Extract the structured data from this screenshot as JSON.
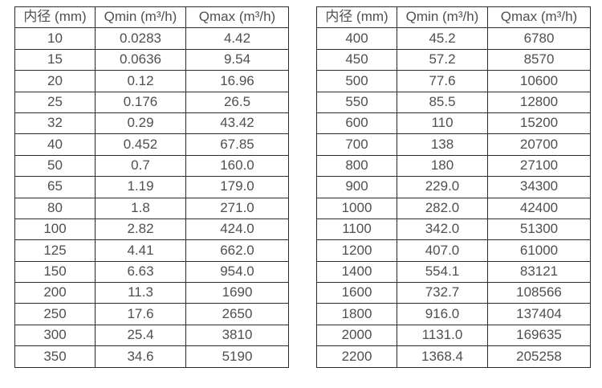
{
  "style": {
    "border_color": "#2b2b2b",
    "text_color": "#4f4f4f",
    "background": "#ffffff"
  },
  "tables": [
    {
      "headers": [
        "内径 (mm)",
        "Qmin (m³/h)",
        "Qmax (m³/h)"
      ],
      "rows": [
        [
          "10",
          "0.0283",
          "4.42"
        ],
        [
          "15",
          "0.0636",
          "9.54"
        ],
        [
          "20",
          "0.12",
          "16.96"
        ],
        [
          "25",
          "0.176",
          "26.5"
        ],
        [
          "32",
          "0.29",
          "43.42"
        ],
        [
          "40",
          "0.452",
          "67.85"
        ],
        [
          "50",
          "0.7",
          "160.0"
        ],
        [
          "65",
          "1.19",
          "179.0"
        ],
        [
          "80",
          "1.8",
          "271.0"
        ],
        [
          "100",
          "2.82",
          "424.0"
        ],
        [
          "125",
          "4.41",
          "662.0"
        ],
        [
          "150",
          "6.63",
          "954.0"
        ],
        [
          "200",
          "11.3",
          "1690"
        ],
        [
          "250",
          "17.6",
          "2650"
        ],
        [
          "300",
          "25.4",
          "3810"
        ],
        [
          "350",
          "34.6",
          "5190"
        ]
      ]
    },
    {
      "headers": [
        "内径 (mm)",
        "Qmin (m³/h)",
        "Qmax (m³/h)"
      ],
      "rows": [
        [
          "400",
          "45.2",
          "6780"
        ],
        [
          "450",
          "57.2",
          "8570"
        ],
        [
          "500",
          "77.6",
          "10600"
        ],
        [
          "550",
          "85.5",
          "12800"
        ],
        [
          "600",
          "110",
          "15200"
        ],
        [
          "700",
          "138",
          "20700"
        ],
        [
          "800",
          "180",
          "27100"
        ],
        [
          "900",
          "229.0",
          "34300"
        ],
        [
          "1000",
          "282.0",
          "42400"
        ],
        [
          "1100",
          "342.0",
          "51300"
        ],
        [
          "1200",
          "407.0",
          "61000"
        ],
        [
          "1400",
          "554.1",
          "83121"
        ],
        [
          "1600",
          "732.7",
          "108566"
        ],
        [
          "1800",
          "916.0",
          "137404"
        ],
        [
          "2000",
          "1131.0",
          "169635"
        ],
        [
          "2200",
          "1368.4",
          "205258"
        ]
      ]
    }
  ]
}
